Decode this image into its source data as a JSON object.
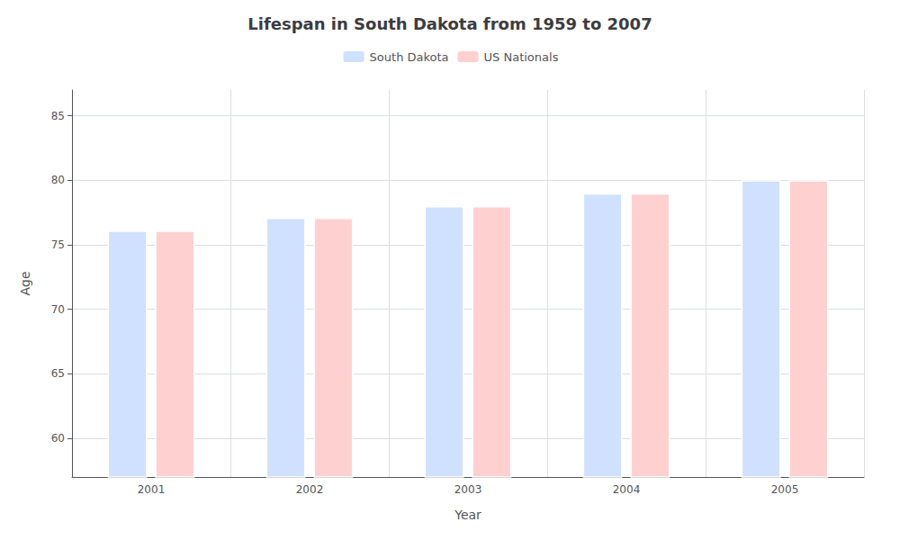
{
  "chart_data": {
    "type": "bar",
    "title": "Lifespan in South Dakota from 1959 to 2007",
    "xlabel": "Year",
    "ylabel": "Age",
    "categories": [
      "2001",
      "2002",
      "2003",
      "2004",
      "2005"
    ],
    "series": [
      {
        "name": "South Dakota",
        "color": "#d0e0ff",
        "values": [
          76.1,
          77.1,
          78.0,
          79.0,
          80.0
        ]
      },
      {
        "name": "US Nationals",
        "color": "#ffd0d0",
        "values": [
          76.1,
          77.1,
          78.0,
          79.0,
          80.0
        ]
      }
    ],
    "ylim": [
      57,
      87
    ],
    "yticks": [
      60,
      65,
      70,
      75,
      80,
      85
    ],
    "grid": true,
    "legend": "top"
  }
}
